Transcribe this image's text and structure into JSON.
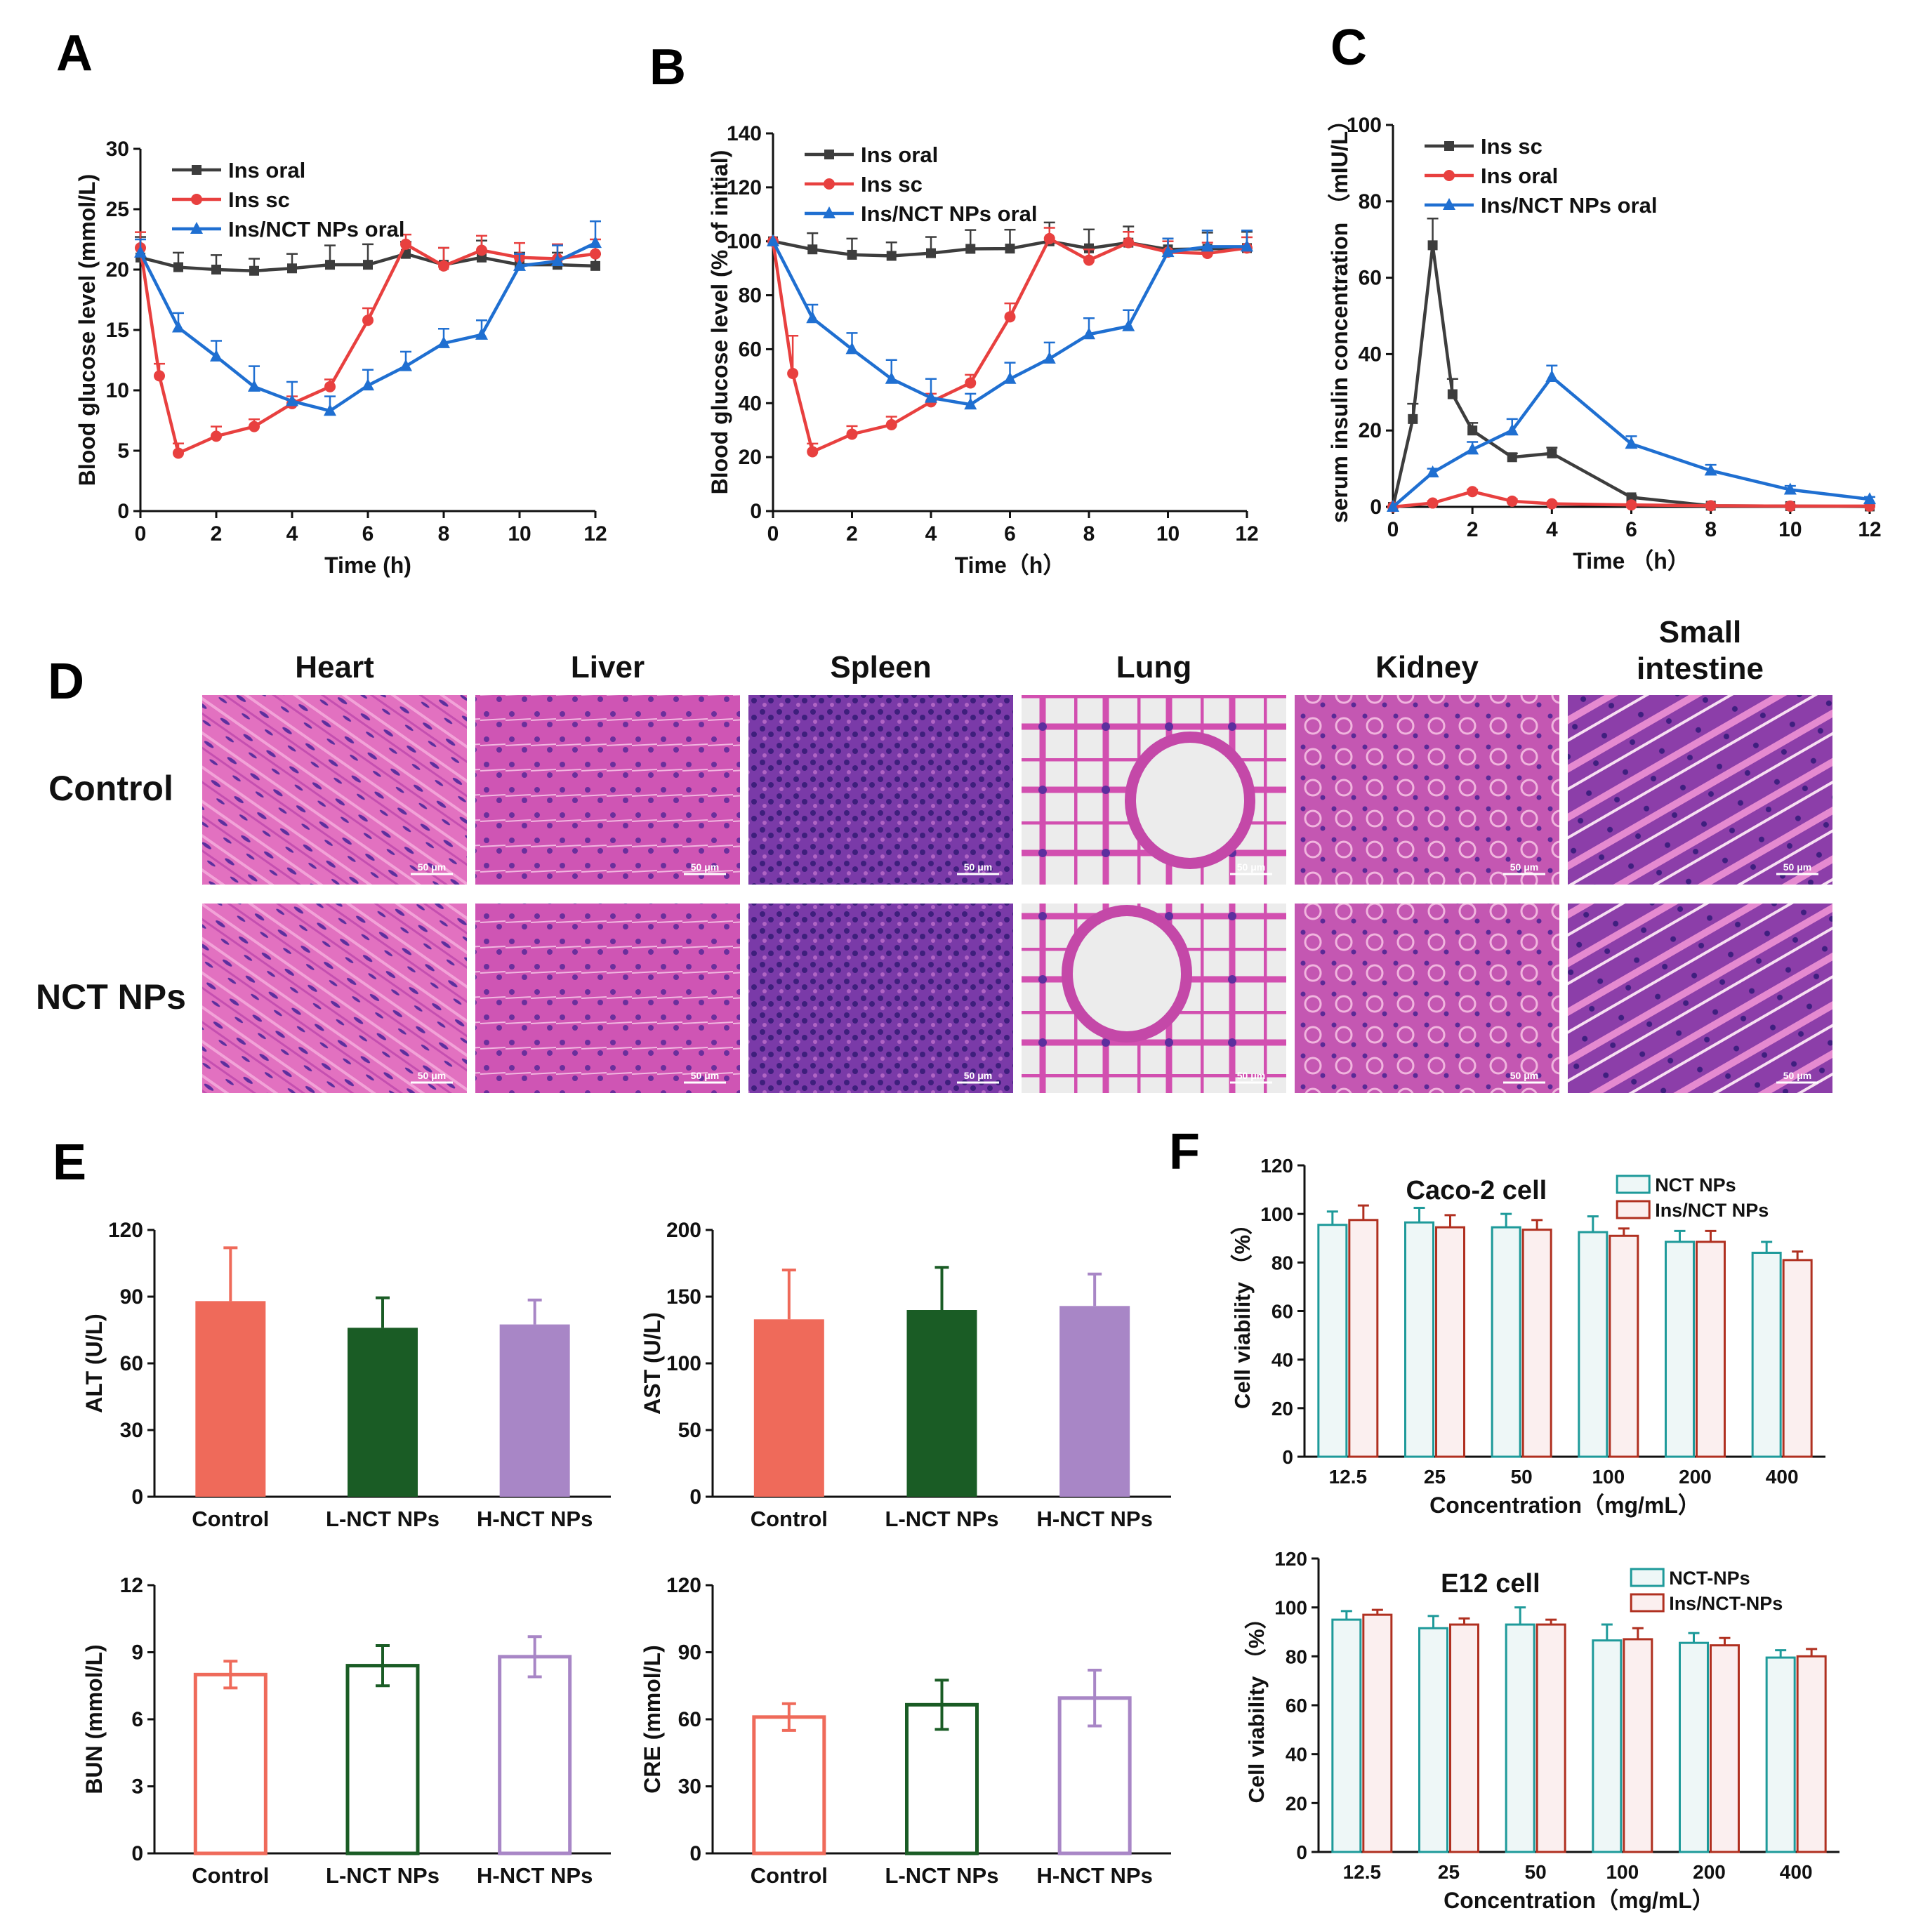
{
  "colors": {
    "gray": "#3d3d3d",
    "red": "#e8403f",
    "blue": "#1f6fd1",
    "salmon": "#ef6a5a",
    "green": "#1a5c25",
    "purple": "#a886c6",
    "teal": "#1e9a9a",
    "darkred": "#b03020",
    "tissue_bg": "#d65ab6",
    "tissue_dark": "#5a2a96"
  },
  "icons": {
    "histology_tile": "hne-stain-image"
  },
  "panels": {
    "A": "A",
    "B": "B",
    "C": "C",
    "D": "D",
    "E": "E",
    "F": "F"
  },
  "histology": {
    "columns": [
      "Heart",
      "Liver",
      "Spleen",
      "Lung",
      "Kidney",
      "Small intestine"
    ],
    "rows": [
      "Control",
      "NCT NPs"
    ],
    "scale_bar": "50 μm"
  },
  "chart_data": [
    {
      "id": "A",
      "type": "line",
      "xlabel": "Time (h)",
      "ylabel": "Blood glucose level (mmol/L)",
      "xlim": [
        0,
        12
      ],
      "ylim": [
        0,
        30
      ],
      "xticks": [
        0,
        2,
        4,
        6,
        8,
        10,
        12
      ],
      "yticks": [
        0,
        5,
        10,
        15,
        20,
        25,
        30
      ],
      "legend": "top-left",
      "series": [
        {
          "name": "Ins oral",
          "color": "gray",
          "marker": "square",
          "x": [
            0,
            1,
            2,
            3,
            4,
            5,
            6,
            7,
            8,
            9,
            10,
            11,
            12
          ],
          "y": [
            21,
            20.2,
            20,
            19.9,
            20.1,
            20.4,
            20.4,
            21.3,
            20.4,
            21,
            20.4,
            20.4,
            20.3
          ],
          "err": [
            1.7,
            1.2,
            1.2,
            1,
            1.2,
            1.6,
            1.7,
            1,
            1.4,
            1.4,
            1,
            1,
            1
          ]
        },
        {
          "name": "Ins sc",
          "color": "red",
          "marker": "circle",
          "x": [
            0,
            0.5,
            1,
            2,
            3,
            4,
            5,
            6,
            7,
            8,
            9,
            10,
            11,
            12
          ],
          "y": [
            21.8,
            11.2,
            4.8,
            6.2,
            7,
            8.9,
            10.3,
            15.8,
            22.1,
            20.3,
            21.6,
            21,
            20.9,
            21.3
          ],
          "err": [
            1.3,
            1,
            0.8,
            0.8,
            0.6,
            0.6,
            0.6,
            1,
            0.8,
            1.5,
            1.2,
            1.2,
            1.2,
            1.2
          ]
        },
        {
          "name": "Ins/NCT NPs oral",
          "color": "blue",
          "marker": "triangle",
          "x": [
            0,
            1,
            2,
            3,
            4,
            5,
            6,
            7,
            8,
            9,
            10,
            11,
            12
          ],
          "y": [
            21.4,
            15.2,
            12.8,
            10.3,
            9.1,
            8.3,
            10.4,
            12,
            13.9,
            14.6,
            20.3,
            20.7,
            22.2
          ],
          "err": [
            1.1,
            1.2,
            1.3,
            1.7,
            1.6,
            1.2,
            1.3,
            1.2,
            1.2,
            1.2,
            1,
            1.3,
            1.8
          ]
        }
      ]
    },
    {
      "id": "B",
      "type": "line",
      "xlabel": "Time（h）",
      "ylabel": "Blood glucose level (% of initial)",
      "xlim": [
        0,
        12
      ],
      "ylim": [
        0,
        140
      ],
      "xticks": [
        0,
        2,
        4,
        6,
        8,
        10,
        12
      ],
      "yticks": [
        0,
        20,
        40,
        60,
        80,
        100,
        120,
        140
      ],
      "legend": "top-left",
      "series": [
        {
          "name": "Ins oral",
          "color": "gray",
          "marker": "square",
          "x": [
            0,
            1,
            2,
            3,
            4,
            5,
            6,
            7,
            8,
            9,
            10,
            11,
            12
          ],
          "y": [
            100,
            97,
            95,
            94.6,
            95.6,
            97.2,
            97.3,
            100,
            97.4,
            99.5,
            97,
            97.2,
            97.5
          ],
          "err": [
            0,
            6,
            6,
            5,
            6,
            7,
            7,
            7,
            7,
            6,
            4,
            6,
            6
          ]
        },
        {
          "name": "Ins sc",
          "color": "red",
          "marker": "circle",
          "x": [
            0,
            0.5,
            1,
            2,
            3,
            4,
            5,
            6,
            7,
            8,
            9,
            10,
            11,
            12
          ],
          "y": [
            100,
            51,
            22,
            28.5,
            32,
            40.5,
            47.5,
            72,
            101,
            93,
            99.5,
            96,
            95.5,
            97.5
          ],
          "err": [
            0,
            14,
            3,
            3,
            3,
            3,
            3,
            5,
            4,
            4,
            4,
            4,
            4,
            4
          ]
        },
        {
          "name": "Ins/NCT NPs oral",
          "color": "blue",
          "marker": "triangle",
          "x": [
            0,
            1,
            2,
            3,
            4,
            5,
            6,
            7,
            8,
            9,
            10,
            11,
            12
          ],
          "y": [
            100,
            71.5,
            60,
            49,
            42,
            39.5,
            49,
            56.5,
            65.5,
            68.5,
            96,
            98,
            98
          ],
          "err": [
            0,
            5,
            6,
            7,
            7,
            4,
            6,
            6,
            6,
            6,
            5,
            6,
            6
          ]
        }
      ]
    },
    {
      "id": "C",
      "type": "line",
      "xlabel": "Time （h）",
      "ylabel": "serum insulin concentration （mIU/L）",
      "xlim": [
        0,
        12
      ],
      "ylim": [
        0,
        100
      ],
      "xticks": [
        0,
        2,
        4,
        6,
        8,
        10,
        12
      ],
      "yticks": [
        0,
        20,
        40,
        60,
        80,
        100
      ],
      "legend": "top-left",
      "series": [
        {
          "name": "Ins sc",
          "color": "gray",
          "marker": "square",
          "x": [
            0,
            0.5,
            1,
            1.5,
            2,
            3,
            4,
            6,
            8,
            10,
            12
          ],
          "y": [
            0,
            23,
            68.5,
            29.5,
            20,
            13,
            14,
            2.5,
            0.3,
            0.2,
            0.1
          ],
          "err": [
            0,
            4,
            7,
            4,
            2,
            1,
            1.5,
            0.5,
            0,
            0,
            0
          ]
        },
        {
          "name": "Ins oral",
          "color": "red",
          "marker": "circle",
          "x": [
            0,
            1,
            2,
            3,
            4,
            6,
            8,
            10,
            12
          ],
          "y": [
            0,
            1,
            4,
            1.5,
            0.8,
            0.5,
            0.3,
            0.2,
            0.2
          ],
          "err": [
            0,
            0.5,
            0.5,
            0.5,
            0.3,
            0.2,
            0.1,
            0.1,
            0.1
          ]
        },
        {
          "name": "Ins/NCT NPs oral",
          "color": "blue",
          "marker": "triangle",
          "x": [
            0,
            1,
            2,
            3,
            4,
            6,
            8,
            10,
            12
          ],
          "y": [
            0,
            9,
            15,
            20,
            34,
            16.5,
            9.5,
            4.5,
            2
          ],
          "err": [
            0,
            1,
            2,
            3,
            3,
            2,
            1.5,
            1,
            0.6
          ]
        }
      ]
    },
    {
      "id": "E1",
      "type": "bar",
      "categories": [
        "Control",
        "L-NCT NPs",
        "H-NCT NPs"
      ],
      "ylabel": "ALT (U/L)",
      "ylim": [
        0,
        120
      ],
      "yticks": [
        0,
        30,
        60,
        90,
        120
      ],
      "fill": true,
      "values": [
        88,
        76,
        77.5
      ],
      "err": [
        24,
        13.5,
        11
      ],
      "colors": [
        "salmon",
        "green",
        "purple"
      ]
    },
    {
      "id": "E2",
      "type": "bar",
      "categories": [
        "Control",
        "L-NCT NPs",
        "H-NCT NPs"
      ],
      "ylabel": "AST (U/L)",
      "ylim": [
        0,
        200
      ],
      "yticks": [
        0,
        50,
        100,
        150,
        200
      ],
      "fill": true,
      "values": [
        133,
        140,
        143
      ],
      "err": [
        37,
        32,
        24
      ],
      "colors": [
        "salmon",
        "green",
        "purple"
      ]
    },
    {
      "id": "E3",
      "type": "bar",
      "categories": [
        "Control",
        "L-NCT NPs",
        "H-NCT NPs"
      ],
      "ylabel": "BUN (mmol/L)",
      "ylim": [
        0,
        12
      ],
      "yticks": [
        0,
        3,
        6,
        9,
        12
      ],
      "fill": false,
      "values": [
        8,
        8.4,
        8.8
      ],
      "err": [
        0.6,
        0.9,
        0.9
      ],
      "colors": [
        "salmon",
        "green",
        "purple"
      ]
    },
    {
      "id": "E4",
      "type": "bar",
      "categories": [
        "Control",
        "L-NCT NPs",
        "H-NCT NPs"
      ],
      "ylabel": "CRE (mmol/L)",
      "ylim": [
        0,
        120
      ],
      "yticks": [
        0,
        30,
        60,
        90,
        120
      ],
      "fill": false,
      "values": [
        61,
        66.5,
        69.5
      ],
      "err": [
        6,
        11,
        12.5
      ],
      "colors": [
        "salmon",
        "green",
        "purple"
      ]
    },
    {
      "id": "F1",
      "type": "bar",
      "title": "Caco-2 cell",
      "xlabel": "Concentration（mg/mL）",
      "ylabel": "Cell viability （%）",
      "categories": [
        "12.5",
        "25",
        "50",
        "100",
        "200",
        "400"
      ],
      "ylim": [
        0,
        120
      ],
      "yticks": [
        0,
        20,
        40,
        60,
        80,
        100,
        120
      ],
      "legend": "top-right",
      "series": [
        {
          "name": "NCT NPs",
          "color": "teal",
          "values": [
            95.5,
            96.5,
            94.5,
            92.5,
            88.5,
            84
          ],
          "err": [
            5.5,
            6,
            5.5,
            6.5,
            4.5,
            4.5
          ]
        },
        {
          "name": "Ins/NCT NPs",
          "color": "darkred",
          "values": [
            97.5,
            94.5,
            93.5,
            91,
            88.5,
            81
          ],
          "err": [
            6,
            5,
            4,
            3,
            4.5,
            3.5
          ]
        }
      ]
    },
    {
      "id": "F2",
      "type": "bar",
      "title": "E12 cell",
      "xlabel": "Concentration（mg/mL）",
      "ylabel": "Cell viability （%）",
      "categories": [
        "12.5",
        "25",
        "50",
        "100",
        "200",
        "400"
      ],
      "ylim": [
        0,
        120
      ],
      "yticks": [
        0,
        20,
        40,
        60,
        80,
        100,
        120
      ],
      "legend": "top-right",
      "series": [
        {
          "name": "NCT-NPs",
          "color": "teal",
          "values": [
            95,
            91.5,
            93,
            86.5,
            85.5,
            79.5
          ],
          "err": [
            3.5,
            5,
            7,
            6.5,
            4,
            3
          ]
        },
        {
          "name": "Ins/NCT-NPs",
          "color": "darkred",
          "values": [
            97,
            93,
            93,
            87,
            84.5,
            80
          ],
          "err": [
            2,
            2.5,
            2,
            4.5,
            3,
            3
          ]
        }
      ]
    }
  ]
}
